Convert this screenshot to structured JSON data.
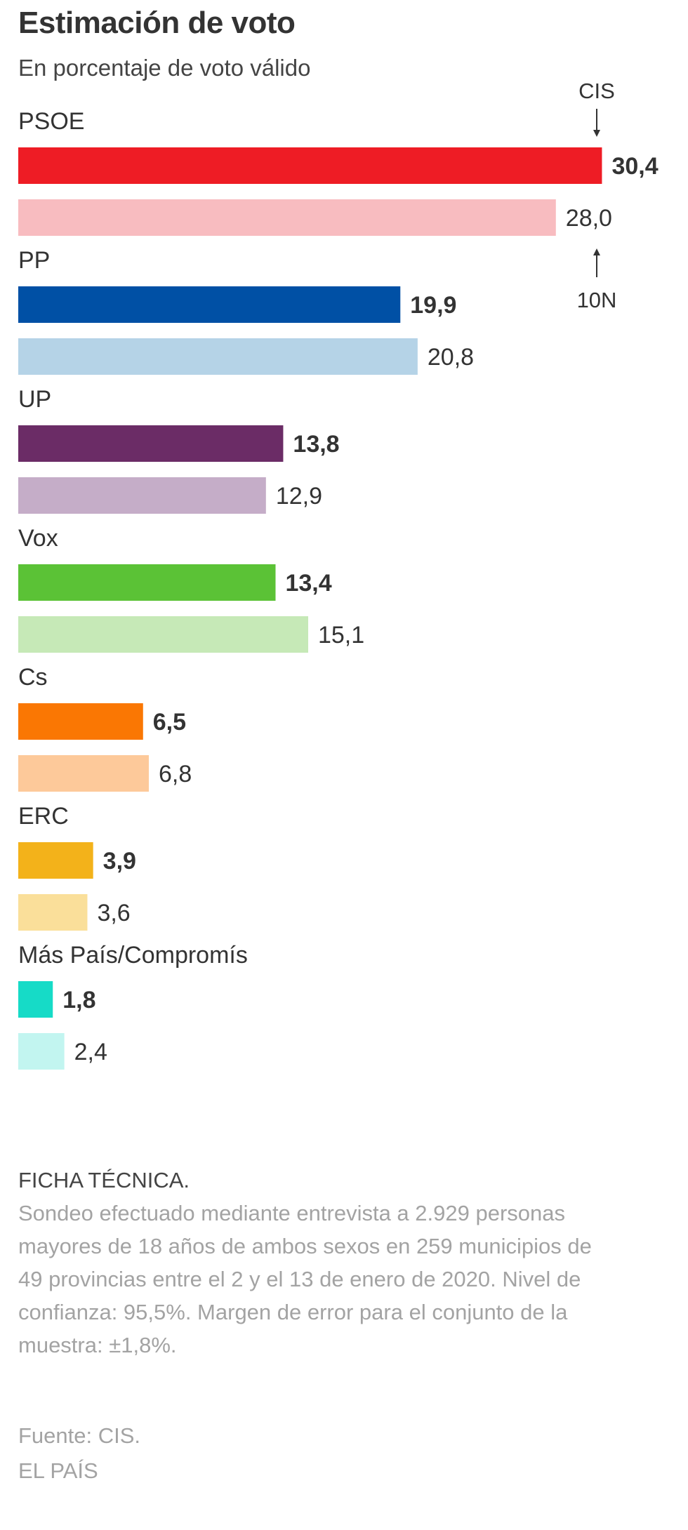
{
  "title": "Estimación de voto",
  "subtitle": "En porcentaje de voto válido",
  "chart_data": {
    "type": "bar",
    "orientation": "horizontal",
    "legend": {
      "top_label": "CIS",
      "bottom_label": "10N"
    },
    "categories": [
      "PSOE",
      "PP",
      "UP",
      "Vox",
      "Cs",
      "ERC",
      "Más País/Compromís"
    ],
    "series": [
      {
        "name": "CIS",
        "values": [
          30.4,
          19.9,
          13.8,
          13.4,
          6.5,
          3.9,
          1.8
        ],
        "labels": [
          "30,4",
          "19,9",
          "13,8",
          "13,4",
          "6,5",
          "3,9",
          "1,8"
        ],
        "colors": [
          "#ee1c25",
          "#0050a5",
          "#6b2c66",
          "#5bc236",
          "#fa7703",
          "#f3b21a",
          "#16dbc7"
        ]
      },
      {
        "name": "10N",
        "values": [
          28.0,
          20.8,
          12.9,
          15.1,
          6.8,
          3.6,
          2.4
        ],
        "labels": [
          "28,0",
          "20,8",
          "12,9",
          "15,1",
          "6,8",
          "3,6",
          "2,4"
        ],
        "colors": [
          "#f8bcc0",
          "#b5d3e7",
          "#c5adc8",
          "#c6e9b7",
          "#fdc99a",
          "#fadf9a",
          "#c2f5f0"
        ]
      }
    ],
    "label_color": "#333333",
    "grid": false
  },
  "ficha": {
    "heading": "FICHA TÉCNICA.",
    "lines": [
      "Sondeo efectuado mediante entrevista a 2.929 personas",
      "mayores de 18 años de ambos sexos en 259 municipios de",
      "49 provincias entre el 2 y el 13 de enero de 2020. Nivel de",
      "confianza: 95,5%. Margen de error para el conjunto de la",
      "muestra: ±1,8%."
    ]
  },
  "source": "Fuente: CIS.",
  "brand": "EL PAÍS"
}
